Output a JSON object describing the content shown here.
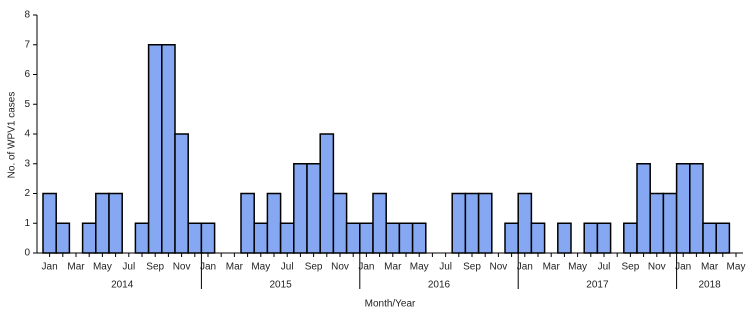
{
  "chart_data": {
    "type": "bar",
    "x_label": "Month/Year",
    "y_label": "No. of WPV1 cases",
    "color": "#86a8f2",
    "categories": [
      "Jan",
      null,
      "Mar",
      null,
      "May",
      null,
      "Jul",
      null,
      "Sep",
      null,
      "Nov",
      null,
      "Jan",
      null,
      "Mar",
      null,
      "May",
      null,
      "Jul",
      null,
      "Sep",
      null,
      "Nov",
      null,
      "Jan",
      null,
      "Mar",
      null,
      "May",
      null,
      "Jul",
      null,
      "Sep",
      null,
      "Nov",
      null,
      "Jan",
      null,
      "Mar",
      null,
      "May",
      null,
      "Jul",
      null,
      "Sep",
      null,
      "Nov",
      null,
      "Jan",
      null,
      "Mar",
      null,
      "May"
    ],
    "years": [
      "2014",
      "2015",
      "2016",
      "2017",
      "2018"
    ],
    "values": [
      2,
      1,
      0,
      1,
      2,
      2,
      0,
      1,
      7,
      7,
      4,
      1,
      1,
      0,
      0,
      2,
      1,
      2,
      1,
      3,
      3,
      4,
      2,
      1,
      1,
      2,
      1,
      1,
      1,
      0,
      0,
      2,
      2,
      2,
      0,
      1,
      2,
      1,
      0,
      1,
      0,
      1,
      1,
      0,
      1,
      3,
      2,
      2,
      3,
      3,
      1,
      1,
      0
    ],
    "ylim": [
      0,
      8
    ],
    "yticks": [
      0,
      1,
      2,
      3,
      4,
      5,
      6,
      7,
      8
    ]
  }
}
